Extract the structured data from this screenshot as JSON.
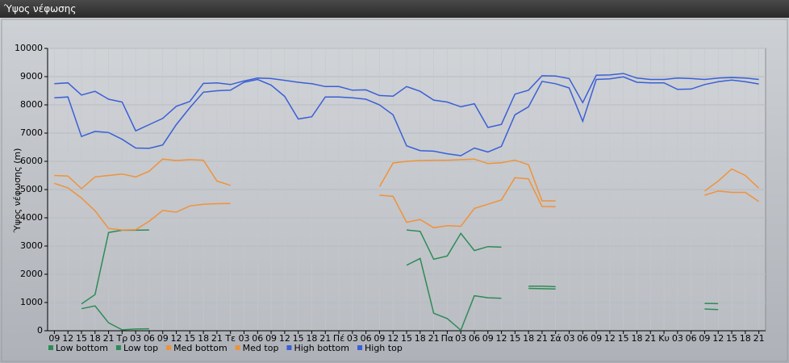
{
  "chart_data": {
    "type": "line",
    "title": "Ύψος νέφωσης",
    "y_label": "Ύψος νέφωσης (m)",
    "categories": [
      "09",
      "12",
      "15",
      "18",
      "21",
      "Τρ",
      "03",
      "06",
      "09",
      "12",
      "15",
      "18",
      "21",
      "Τε",
      "03",
      "06",
      "09",
      "12",
      "15",
      "18",
      "21",
      "Πέ",
      "03",
      "06",
      "09",
      "12",
      "15",
      "18",
      "21",
      "Πα",
      "03",
      "06",
      "09",
      "12",
      "15",
      "18",
      "21",
      "Σά",
      "03",
      "06",
      "09",
      "12",
      "15",
      "18",
      "21",
      "Κυ",
      "03",
      "06",
      "09",
      "12",
      "15",
      "18",
      "21"
    ],
    "ylim": [
      0,
      10000
    ],
    "yticks": [
      0,
      1000,
      2000,
      3000,
      4000,
      5000,
      6000,
      7000,
      8000,
      9000,
      10000
    ],
    "grid": true,
    "series": [
      {
        "name": "Low bottom",
        "color": "#2e8b57",
        "values": [
          null,
          null,
          780,
          880,
          280,
          30,
          60,
          70,
          null,
          null,
          null,
          null,
          null,
          null,
          null,
          null,
          null,
          null,
          null,
          null,
          null,
          null,
          null,
          null,
          null,
          null,
          2320,
          2560,
          620,
          430,
          20,
          1240,
          1170,
          1150,
          null,
          1500,
          1490,
          1480,
          null,
          null,
          null,
          null,
          null,
          null,
          null,
          null,
          null,
          null,
          770,
          750,
          null,
          null,
          null
        ]
      },
      {
        "name": "Low top",
        "color": "#2e8b57",
        "values": [
          null,
          null,
          950,
          1280,
          3480,
          3560,
          3560,
          3570,
          null,
          null,
          null,
          null,
          null,
          null,
          null,
          null,
          null,
          null,
          null,
          null,
          null,
          null,
          null,
          null,
          null,
          null,
          3570,
          3520,
          2530,
          2650,
          3450,
          2840,
          2980,
          2960,
          null,
          1580,
          1580,
          1560,
          null,
          null,
          null,
          null,
          null,
          null,
          null,
          null,
          null,
          null,
          970,
          960,
          null,
          null,
          null
        ]
      },
      {
        "name": "Med bottom",
        "color": "#f0923a",
        "values": [
          5220,
          5060,
          4700,
          4250,
          3620,
          3570,
          3580,
          3880,
          4260,
          4200,
          4420,
          4480,
          4500,
          4510,
          null,
          null,
          null,
          null,
          null,
          null,
          null,
          null,
          null,
          null,
          4800,
          4760,
          3840,
          3940,
          3650,
          3720,
          3700,
          4330,
          4480,
          4630,
          5420,
          5380,
          4400,
          4390,
          null,
          null,
          null,
          null,
          null,
          null,
          null,
          null,
          null,
          null,
          4800,
          4950,
          4900,
          4900,
          4580
        ]
      },
      {
        "name": "Med top",
        "color": "#f0923a",
        "values": [
          5500,
          5480,
          5030,
          5450,
          5500,
          5550,
          5450,
          5650,
          6080,
          6030,
          6060,
          6040,
          5300,
          5150,
          null,
          null,
          null,
          null,
          null,
          null,
          null,
          null,
          null,
          null,
          5100,
          5940,
          6000,
          6030,
          6040,
          6040,
          6060,
          6080,
          5920,
          5950,
          6040,
          5880,
          4600,
          4600,
          null,
          null,
          null,
          null,
          null,
          null,
          null,
          null,
          null,
          null,
          4950,
          5300,
          5730,
          5500,
          5050
        ]
      },
      {
        "name": "High bottom",
        "color": "#3a5fd6",
        "values": [
          8250,
          8280,
          6880,
          7060,
          7020,
          6780,
          6470,
          6460,
          6580,
          7300,
          7900,
          8450,
          8500,
          8520,
          8800,
          8900,
          8700,
          8300,
          7500,
          7580,
          8280,
          8280,
          8250,
          8200,
          8000,
          7650,
          6550,
          6380,
          6360,
          6270,
          6200,
          6470,
          6330,
          6530,
          7650,
          7930,
          8830,
          8750,
          8600,
          7420,
          8900,
          8920,
          8990,
          8800,
          8780,
          8780,
          8550,
          8560,
          8720,
          8820,
          8880,
          8820,
          8740
        ]
      },
      {
        "name": "High top",
        "color": "#3a5fd6",
        "values": [
          8750,
          8780,
          8350,
          8480,
          8200,
          8100,
          7080,
          7300,
          7520,
          7950,
          8120,
          8760,
          8780,
          8720,
          8850,
          8950,
          8930,
          8870,
          8800,
          8750,
          8650,
          8650,
          8520,
          8530,
          8330,
          8310,
          8650,
          8480,
          8170,
          8100,
          7930,
          8040,
          7200,
          7310,
          8380,
          8520,
          9030,
          9020,
          8930,
          8080,
          9050,
          9060,
          9110,
          8950,
          8900,
          8900,
          8950,
          8930,
          8900,
          8950,
          8970,
          8950,
          8900
        ]
      }
    ]
  }
}
